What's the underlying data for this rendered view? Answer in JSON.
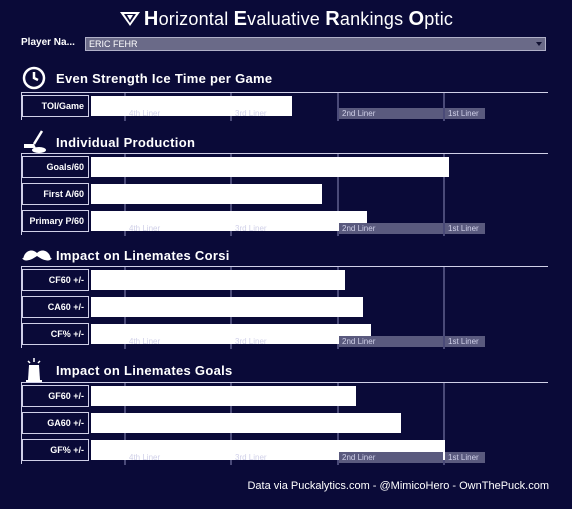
{
  "title": {
    "prefix": "",
    "parts": [
      {
        "cap": "H",
        "rest": "orizontal "
      },
      {
        "cap": "E",
        "rest": "valuative "
      },
      {
        "cap": "R",
        "rest": "ankings "
      },
      {
        "cap": "O",
        "rest": "ptic"
      }
    ]
  },
  "player": {
    "label": "Player Na...",
    "selected": "ERIC FEHR"
  },
  "tiers": [
    "4th Liner",
    "3rd Liner",
    "2nd Liner",
    "1st Liner"
  ],
  "sections": [
    {
      "title": "Even Strength Ice Time per Game",
      "icon": "clock-icon",
      "rows": [
        {
          "label": "TOI/Game",
          "value": 0.54
        }
      ]
    },
    {
      "title": "Individual Production",
      "icon": "hockey-stick-icon",
      "rows": [
        {
          "label": "Goals/60",
          "value": 0.96
        },
        {
          "label": "First A/60",
          "value": 0.62
        },
        {
          "label": "Primary P/60",
          "value": 0.74
        }
      ]
    },
    {
      "title": "Impact on Linemates Corsi",
      "icon": "mustache-icon",
      "rows": [
        {
          "label": "CF60 +/-",
          "value": 0.68
        },
        {
          "label": "CA60 +/-",
          "value": 0.73
        },
        {
          "label": "CF% +/-",
          "value": 0.75
        }
      ]
    },
    {
      "title": "Impact on Linemates Goals",
      "icon": "trophy-icon",
      "rows": [
        {
          "label": "GF60 +/-",
          "value": 0.71
        },
        {
          "label": "GA60 +/-",
          "value": 0.83
        },
        {
          "label": "GF% +/-",
          "value": 0.95
        }
      ]
    }
  ],
  "footer": "Data via Puckalytics.com - @MimicoHero - OwnThePuck.com",
  "colors": {
    "background": "#0a0a38",
    "bar": "#ffffff",
    "tier_line": "#4a4a78",
    "tier_label_bg": "#5a5a7e"
  }
}
